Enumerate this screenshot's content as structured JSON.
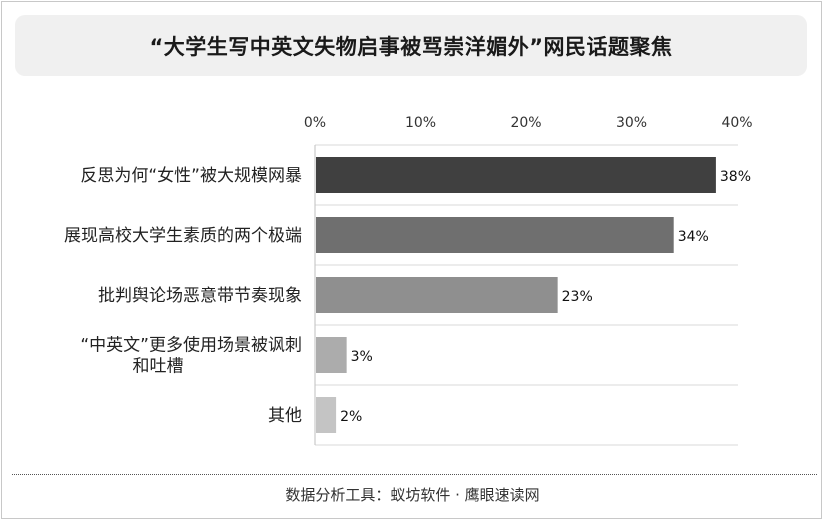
{
  "title": "“大学生写中英文失物启事被骂崇洋媚外”网民话题聚焦",
  "footer": "数据分析工具：蚁坊软件 · 鹰眼速读网",
  "chart_data": {
    "type": "bar",
    "orientation": "horizontal",
    "categories": [
      [
        "反思为何“女性”被大规模网暴"
      ],
      [
        "展现高校大学生素质的两个极端"
      ],
      [
        "批判舆论场恶意带节奏现象"
      ],
      [
        "“中英文”更多使用场景被讽刺",
        "和吐槽"
      ],
      [
        "其他"
      ]
    ],
    "values": [
      38,
      34,
      23,
      3,
      2
    ],
    "value_labels": [
      "38%",
      "34%",
      "23%",
      "3%",
      "2%"
    ],
    "bar_colors": [
      "#404040",
      "#6f6f6f",
      "#8f8f8f",
      "#acacac",
      "#c4c4c4"
    ],
    "xlim": [
      0,
      40
    ],
    "ticks": [
      0,
      10,
      20,
      30,
      40
    ],
    "tick_labels": [
      "0%",
      "10%",
      "20%",
      "30%",
      "40%"
    ],
    "axis_position": "top",
    "grid": true
  }
}
